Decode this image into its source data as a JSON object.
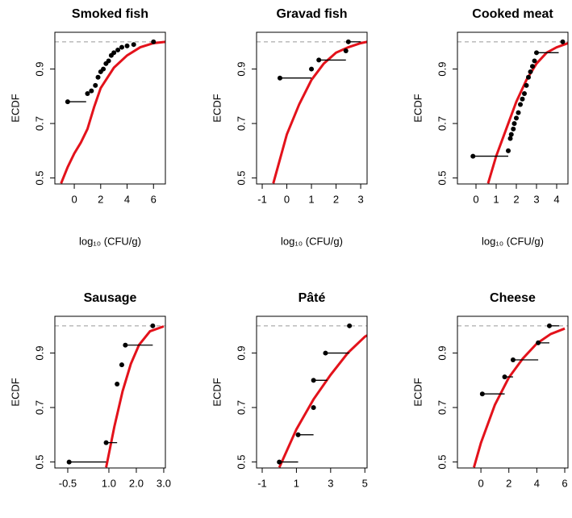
{
  "chart_data": [
    {
      "type": "ecdf",
      "title": "Smoked fish",
      "xlabel": "log₁₀ (CFU/g)",
      "ylabel": "ECDF",
      "xlim": [
        -1.47,
        6.9
      ],
      "ylim": [
        0.478,
        1.035
      ],
      "xticks": [
        0,
        2,
        4,
        6
      ],
      "yticks": [
        0.5,
        0.7,
        0.9
      ],
      "hline": 1,
      "points": {
        "color": "#000000",
        "x": [
          -0.5,
          1.0,
          1.3,
          1.6,
          1.8,
          2.0,
          2.2,
          2.4,
          2.6,
          2.8,
          3.0,
          3.3,
          3.6,
          4.0,
          4.5,
          6.0
        ],
        "x2": [
          0.9,
          null,
          null,
          null,
          null,
          null,
          null,
          null,
          null,
          null,
          null,
          null,
          null,
          null,
          null,
          null
        ],
        "values": [
          0.78,
          0.81,
          0.82,
          0.84,
          0.87,
          0.89,
          0.9,
          0.92,
          0.93,
          0.95,
          0.96,
          0.97,
          0.98,
          0.985,
          0.99,
          1.0
        ]
      },
      "curve": {
        "color": "#e3121b",
        "x": [
          -1.0,
          -0.5,
          0,
          0.5,
          1,
          1.5,
          2,
          3,
          4,
          5,
          6,
          6.9
        ],
        "values": [
          0.48,
          0.54,
          0.59,
          0.63,
          0.68,
          0.76,
          0.83,
          0.905,
          0.95,
          0.98,
          0.995,
          1.0
        ]
      }
    },
    {
      "type": "ecdf",
      "title": "Gravad fish",
      "xlabel": "log₁₀ (CFU/g)",
      "ylabel": "ECDF",
      "xlim": [
        -1.23,
        3.26
      ],
      "ylim": [
        0.478,
        1.035
      ],
      "xticks": [
        -1,
        0,
        1,
        2,
        3
      ],
      "yticks": [
        0.5,
        0.7,
        0.9
      ],
      "hline": 1,
      "points": {
        "color": "#000000",
        "x": [
          -0.28,
          1.0,
          1.3,
          2.4,
          2.5
        ],
        "x2": [
          1.0,
          null,
          2.4,
          null,
          3.0
        ],
        "values": [
          0.867,
          0.9,
          0.933,
          0.967,
          1.0
        ]
      },
      "curve": {
        "color": "#e3121b",
        "x": [
          -0.55,
          0,
          0.5,
          1,
          1.5,
          2,
          2.5,
          3,
          3.26
        ],
        "values": [
          0.48,
          0.66,
          0.77,
          0.86,
          0.92,
          0.96,
          0.98,
          0.995,
          1.0
        ]
      }
    },
    {
      "type": "ecdf",
      "title": "Cooked meat",
      "xlabel": "log₁₀ (CFU/g)",
      "ylabel": "ECDF",
      "xlim": [
        -0.92,
        4.56
      ],
      "ylim": [
        0.478,
        1.035
      ],
      "xticks": [
        0,
        1,
        2,
        3,
        4
      ],
      "yticks": [
        0.5,
        0.7,
        0.9
      ],
      "hline": 1,
      "points": {
        "color": "#000000",
        "x": [
          -0.15,
          1.6,
          1.7,
          1.75,
          1.85,
          1.9,
          2.0,
          2.1,
          2.2,
          2.3,
          2.4,
          2.5,
          2.6,
          2.7,
          2.8,
          2.9,
          3.0,
          4.3
        ],
        "x2": [
          1.6,
          null,
          null,
          null,
          null,
          null,
          null,
          null,
          null,
          null,
          null,
          null,
          null,
          null,
          null,
          null,
          4.1,
          null
        ],
        "values": [
          0.58,
          0.6,
          0.645,
          0.66,
          0.68,
          0.7,
          0.72,
          0.74,
          0.77,
          0.79,
          0.81,
          0.84,
          0.87,
          0.89,
          0.91,
          0.93,
          0.96,
          1.0
        ]
      },
      "curve": {
        "color": "#e3121b",
        "x": [
          0.6,
          1,
          1.5,
          2,
          2.5,
          3,
          3.5,
          4,
          4.56
        ],
        "values": [
          0.48,
          0.58,
          0.68,
          0.78,
          0.86,
          0.92,
          0.96,
          0.98,
          0.995
        ]
      }
    },
    {
      "type": "ecdf",
      "title": "Sausage",
      "xlabel": "log₁₀ (CFU/g)",
      "ylabel": "ECDF",
      "xlim": [
        -0.97,
        3.06
      ],
      "ylim": [
        0.478,
        1.035
      ],
      "xticks": [
        -0.5,
        {
          "value": 1,
          "label": "1.0"
        },
        {
          "value": 2,
          "label": "2.0"
        },
        {
          "value": 3,
          "label": "3.0"
        }
      ],
      "yticks": [
        0.5,
        0.7,
        0.9
      ],
      "hline": 1,
      "points": {
        "color": "#000000",
        "x": [
          -0.45,
          0.9,
          1.3,
          1.47,
          1.6,
          2.6
        ],
        "x2": [
          0.9,
          1.3,
          null,
          null,
          2.6,
          null
        ],
        "values": [
          0.5,
          0.571,
          0.786,
          0.857,
          0.929,
          1.0
        ]
      },
      "curve": {
        "color": "#e3121b",
        "x": [
          0.9,
          1.2,
          1.5,
          1.8,
          2.1,
          2.5,
          3.0
        ],
        "values": [
          0.48,
          0.63,
          0.76,
          0.86,
          0.93,
          0.98,
          0.998
        ]
      }
    },
    {
      "type": "ecdf",
      "title": "Pâté",
      "xlabel": "log₁₀ (CFU/g)",
      "ylabel": "ECDF",
      "xlim": [
        -1.33,
        5.13
      ],
      "ylim": [
        0.478,
        1.035
      ],
      "xticks": [
        -1,
        1,
        3,
        5
      ],
      "yticks": [
        0.5,
        0.7,
        0.9
      ],
      "hline": 1,
      "points": {
        "color": "#000000",
        "x": [
          0.0,
          1.1,
          2.0,
          2.0,
          2.7,
          4.1
        ],
        "x2": [
          1.1,
          2.0,
          null,
          2.8,
          4.1,
          null
        ],
        "values": [
          0.5,
          0.6,
          0.7,
          0.8,
          0.9,
          1.0
        ]
      },
      "curve": {
        "color": "#e3121b",
        "x": [
          0,
          1,
          2,
          3,
          4,
          5,
          5.13
        ],
        "values": [
          0.48,
          0.62,
          0.73,
          0.82,
          0.9,
          0.96,
          0.965
        ]
      }
    },
    {
      "type": "ecdf",
      "title": "Cheese",
      "xlabel": "log₁₀ (CFU/g)",
      "ylabel": "ECDF",
      "xlim": [
        -1.68,
        6.23
      ],
      "ylim": [
        0.478,
        1.035
      ],
      "xticks": [
        0,
        2,
        4,
        6
      ],
      "yticks": [
        0.5,
        0.7,
        0.9
      ],
      "hline": 1,
      "points": {
        "color": "#000000",
        "x": [
          0.1,
          1.7,
          2.3,
          4.1,
          4.9
        ],
        "x2": [
          1.7,
          2.3,
          4.1,
          4.9,
          5.6
        ],
        "values": [
          0.75,
          0.8125,
          0.875,
          0.9375,
          1.0
        ]
      },
      "curve": {
        "color": "#e3121b",
        "x": [
          -0.5,
          0,
          1,
          2,
          3,
          4,
          5,
          6
        ],
        "values": [
          0.48,
          0.57,
          0.71,
          0.81,
          0.88,
          0.935,
          0.97,
          0.99
        ]
      }
    }
  ]
}
